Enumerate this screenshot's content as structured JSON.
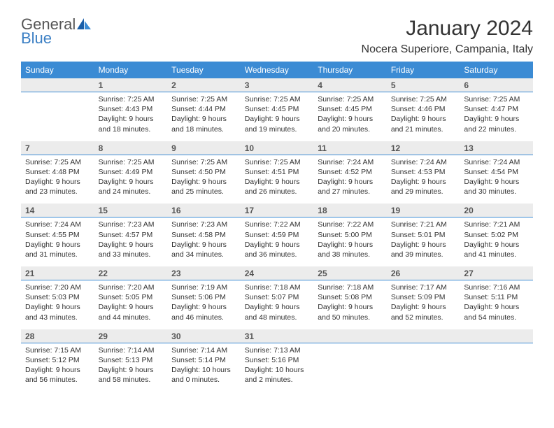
{
  "logo": {
    "general": "General",
    "blue": "Blue"
  },
  "title": "January 2024",
  "location": "Nocera Superiore, Campania, Italy",
  "colors": {
    "header_bg": "#3b8bd4",
    "header_text": "#ffffff",
    "daynum_bg": "#ececec",
    "daynum_border": "#3b8bd4",
    "body_bg": "#ffffff",
    "text": "#333333",
    "logo_gray": "#555555",
    "logo_blue": "#3b7fc4"
  },
  "day_names": [
    "Sunday",
    "Monday",
    "Tuesday",
    "Wednesday",
    "Thursday",
    "Friday",
    "Saturday"
  ],
  "weeks": [
    [
      null,
      {
        "n": "1",
        "sunrise": "Sunrise: 7:25 AM",
        "sunset": "Sunset: 4:43 PM",
        "daylight": "Daylight: 9 hours and 18 minutes."
      },
      {
        "n": "2",
        "sunrise": "Sunrise: 7:25 AM",
        "sunset": "Sunset: 4:44 PM",
        "daylight": "Daylight: 9 hours and 18 minutes."
      },
      {
        "n": "3",
        "sunrise": "Sunrise: 7:25 AM",
        "sunset": "Sunset: 4:45 PM",
        "daylight": "Daylight: 9 hours and 19 minutes."
      },
      {
        "n": "4",
        "sunrise": "Sunrise: 7:25 AM",
        "sunset": "Sunset: 4:45 PM",
        "daylight": "Daylight: 9 hours and 20 minutes."
      },
      {
        "n": "5",
        "sunrise": "Sunrise: 7:25 AM",
        "sunset": "Sunset: 4:46 PM",
        "daylight": "Daylight: 9 hours and 21 minutes."
      },
      {
        "n": "6",
        "sunrise": "Sunrise: 7:25 AM",
        "sunset": "Sunset: 4:47 PM",
        "daylight": "Daylight: 9 hours and 22 minutes."
      }
    ],
    [
      {
        "n": "7",
        "sunrise": "Sunrise: 7:25 AM",
        "sunset": "Sunset: 4:48 PM",
        "daylight": "Daylight: 9 hours and 23 minutes."
      },
      {
        "n": "8",
        "sunrise": "Sunrise: 7:25 AM",
        "sunset": "Sunset: 4:49 PM",
        "daylight": "Daylight: 9 hours and 24 minutes."
      },
      {
        "n": "9",
        "sunrise": "Sunrise: 7:25 AM",
        "sunset": "Sunset: 4:50 PM",
        "daylight": "Daylight: 9 hours and 25 minutes."
      },
      {
        "n": "10",
        "sunrise": "Sunrise: 7:25 AM",
        "sunset": "Sunset: 4:51 PM",
        "daylight": "Daylight: 9 hours and 26 minutes."
      },
      {
        "n": "11",
        "sunrise": "Sunrise: 7:24 AM",
        "sunset": "Sunset: 4:52 PM",
        "daylight": "Daylight: 9 hours and 27 minutes."
      },
      {
        "n": "12",
        "sunrise": "Sunrise: 7:24 AM",
        "sunset": "Sunset: 4:53 PM",
        "daylight": "Daylight: 9 hours and 29 minutes."
      },
      {
        "n": "13",
        "sunrise": "Sunrise: 7:24 AM",
        "sunset": "Sunset: 4:54 PM",
        "daylight": "Daylight: 9 hours and 30 minutes."
      }
    ],
    [
      {
        "n": "14",
        "sunrise": "Sunrise: 7:24 AM",
        "sunset": "Sunset: 4:55 PM",
        "daylight": "Daylight: 9 hours and 31 minutes."
      },
      {
        "n": "15",
        "sunrise": "Sunrise: 7:23 AM",
        "sunset": "Sunset: 4:57 PM",
        "daylight": "Daylight: 9 hours and 33 minutes."
      },
      {
        "n": "16",
        "sunrise": "Sunrise: 7:23 AM",
        "sunset": "Sunset: 4:58 PM",
        "daylight": "Daylight: 9 hours and 34 minutes."
      },
      {
        "n": "17",
        "sunrise": "Sunrise: 7:22 AM",
        "sunset": "Sunset: 4:59 PM",
        "daylight": "Daylight: 9 hours and 36 minutes."
      },
      {
        "n": "18",
        "sunrise": "Sunrise: 7:22 AM",
        "sunset": "Sunset: 5:00 PM",
        "daylight": "Daylight: 9 hours and 38 minutes."
      },
      {
        "n": "19",
        "sunrise": "Sunrise: 7:21 AM",
        "sunset": "Sunset: 5:01 PM",
        "daylight": "Daylight: 9 hours and 39 minutes."
      },
      {
        "n": "20",
        "sunrise": "Sunrise: 7:21 AM",
        "sunset": "Sunset: 5:02 PM",
        "daylight": "Daylight: 9 hours and 41 minutes."
      }
    ],
    [
      {
        "n": "21",
        "sunrise": "Sunrise: 7:20 AM",
        "sunset": "Sunset: 5:03 PM",
        "daylight": "Daylight: 9 hours and 43 minutes."
      },
      {
        "n": "22",
        "sunrise": "Sunrise: 7:20 AM",
        "sunset": "Sunset: 5:05 PM",
        "daylight": "Daylight: 9 hours and 44 minutes."
      },
      {
        "n": "23",
        "sunrise": "Sunrise: 7:19 AM",
        "sunset": "Sunset: 5:06 PM",
        "daylight": "Daylight: 9 hours and 46 minutes."
      },
      {
        "n": "24",
        "sunrise": "Sunrise: 7:18 AM",
        "sunset": "Sunset: 5:07 PM",
        "daylight": "Daylight: 9 hours and 48 minutes."
      },
      {
        "n": "25",
        "sunrise": "Sunrise: 7:18 AM",
        "sunset": "Sunset: 5:08 PM",
        "daylight": "Daylight: 9 hours and 50 minutes."
      },
      {
        "n": "26",
        "sunrise": "Sunrise: 7:17 AM",
        "sunset": "Sunset: 5:09 PM",
        "daylight": "Daylight: 9 hours and 52 minutes."
      },
      {
        "n": "27",
        "sunrise": "Sunrise: 7:16 AM",
        "sunset": "Sunset: 5:11 PM",
        "daylight": "Daylight: 9 hours and 54 minutes."
      }
    ],
    [
      {
        "n": "28",
        "sunrise": "Sunrise: 7:15 AM",
        "sunset": "Sunset: 5:12 PM",
        "daylight": "Daylight: 9 hours and 56 minutes."
      },
      {
        "n": "29",
        "sunrise": "Sunrise: 7:14 AM",
        "sunset": "Sunset: 5:13 PM",
        "daylight": "Daylight: 9 hours and 58 minutes."
      },
      {
        "n": "30",
        "sunrise": "Sunrise: 7:14 AM",
        "sunset": "Sunset: 5:14 PM",
        "daylight": "Daylight: 10 hours and 0 minutes."
      },
      {
        "n": "31",
        "sunrise": "Sunrise: 7:13 AM",
        "sunset": "Sunset: 5:16 PM",
        "daylight": "Daylight: 10 hours and 2 minutes."
      },
      null,
      null,
      null
    ]
  ]
}
